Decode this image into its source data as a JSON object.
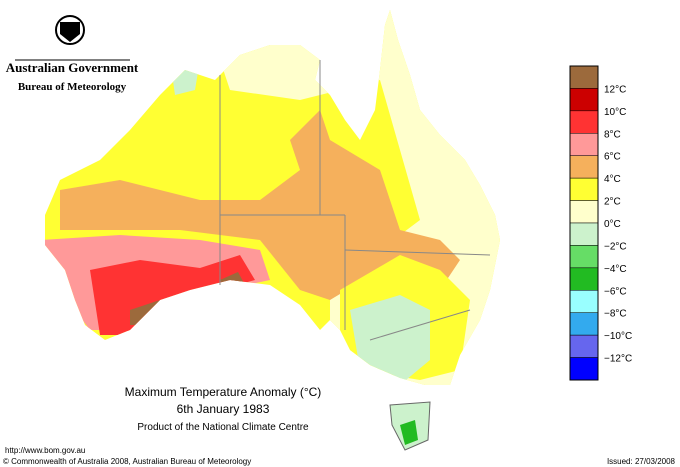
{
  "header": {
    "government": "Australian Government",
    "agency": "Bureau of Meteorology"
  },
  "map": {
    "title": "Maximum Temperature Anomaly (°C)",
    "date": "6th January 1983",
    "product": "Product of the National Climate Centre"
  },
  "legend": {
    "colors": [
      "#9c6a3c",
      "#cc0000",
      "#ff3333",
      "#ff9999",
      "#f5b05c",
      "#ffff33",
      "#ffffcc",
      "#ccf2cc",
      "#66dd66",
      "#22bb22",
      "#99ffff",
      "#33aaee",
      "#6666ee",
      "#0000ff"
    ],
    "labels": [
      "12°C",
      "10°C",
      "8°C",
      "6°C",
      "4°C",
      "2°C",
      "0°C",
      "−2°C",
      "−4°C",
      "−6°C",
      "−8°C",
      "−10°C",
      "−12°C"
    ]
  },
  "footer": {
    "url": "http://www.bom.gov.au",
    "copyright": "© Commonwealth of Australia 2008, Australian Bureau of Meteorology",
    "issued": "Issued: 27/03/2008"
  }
}
